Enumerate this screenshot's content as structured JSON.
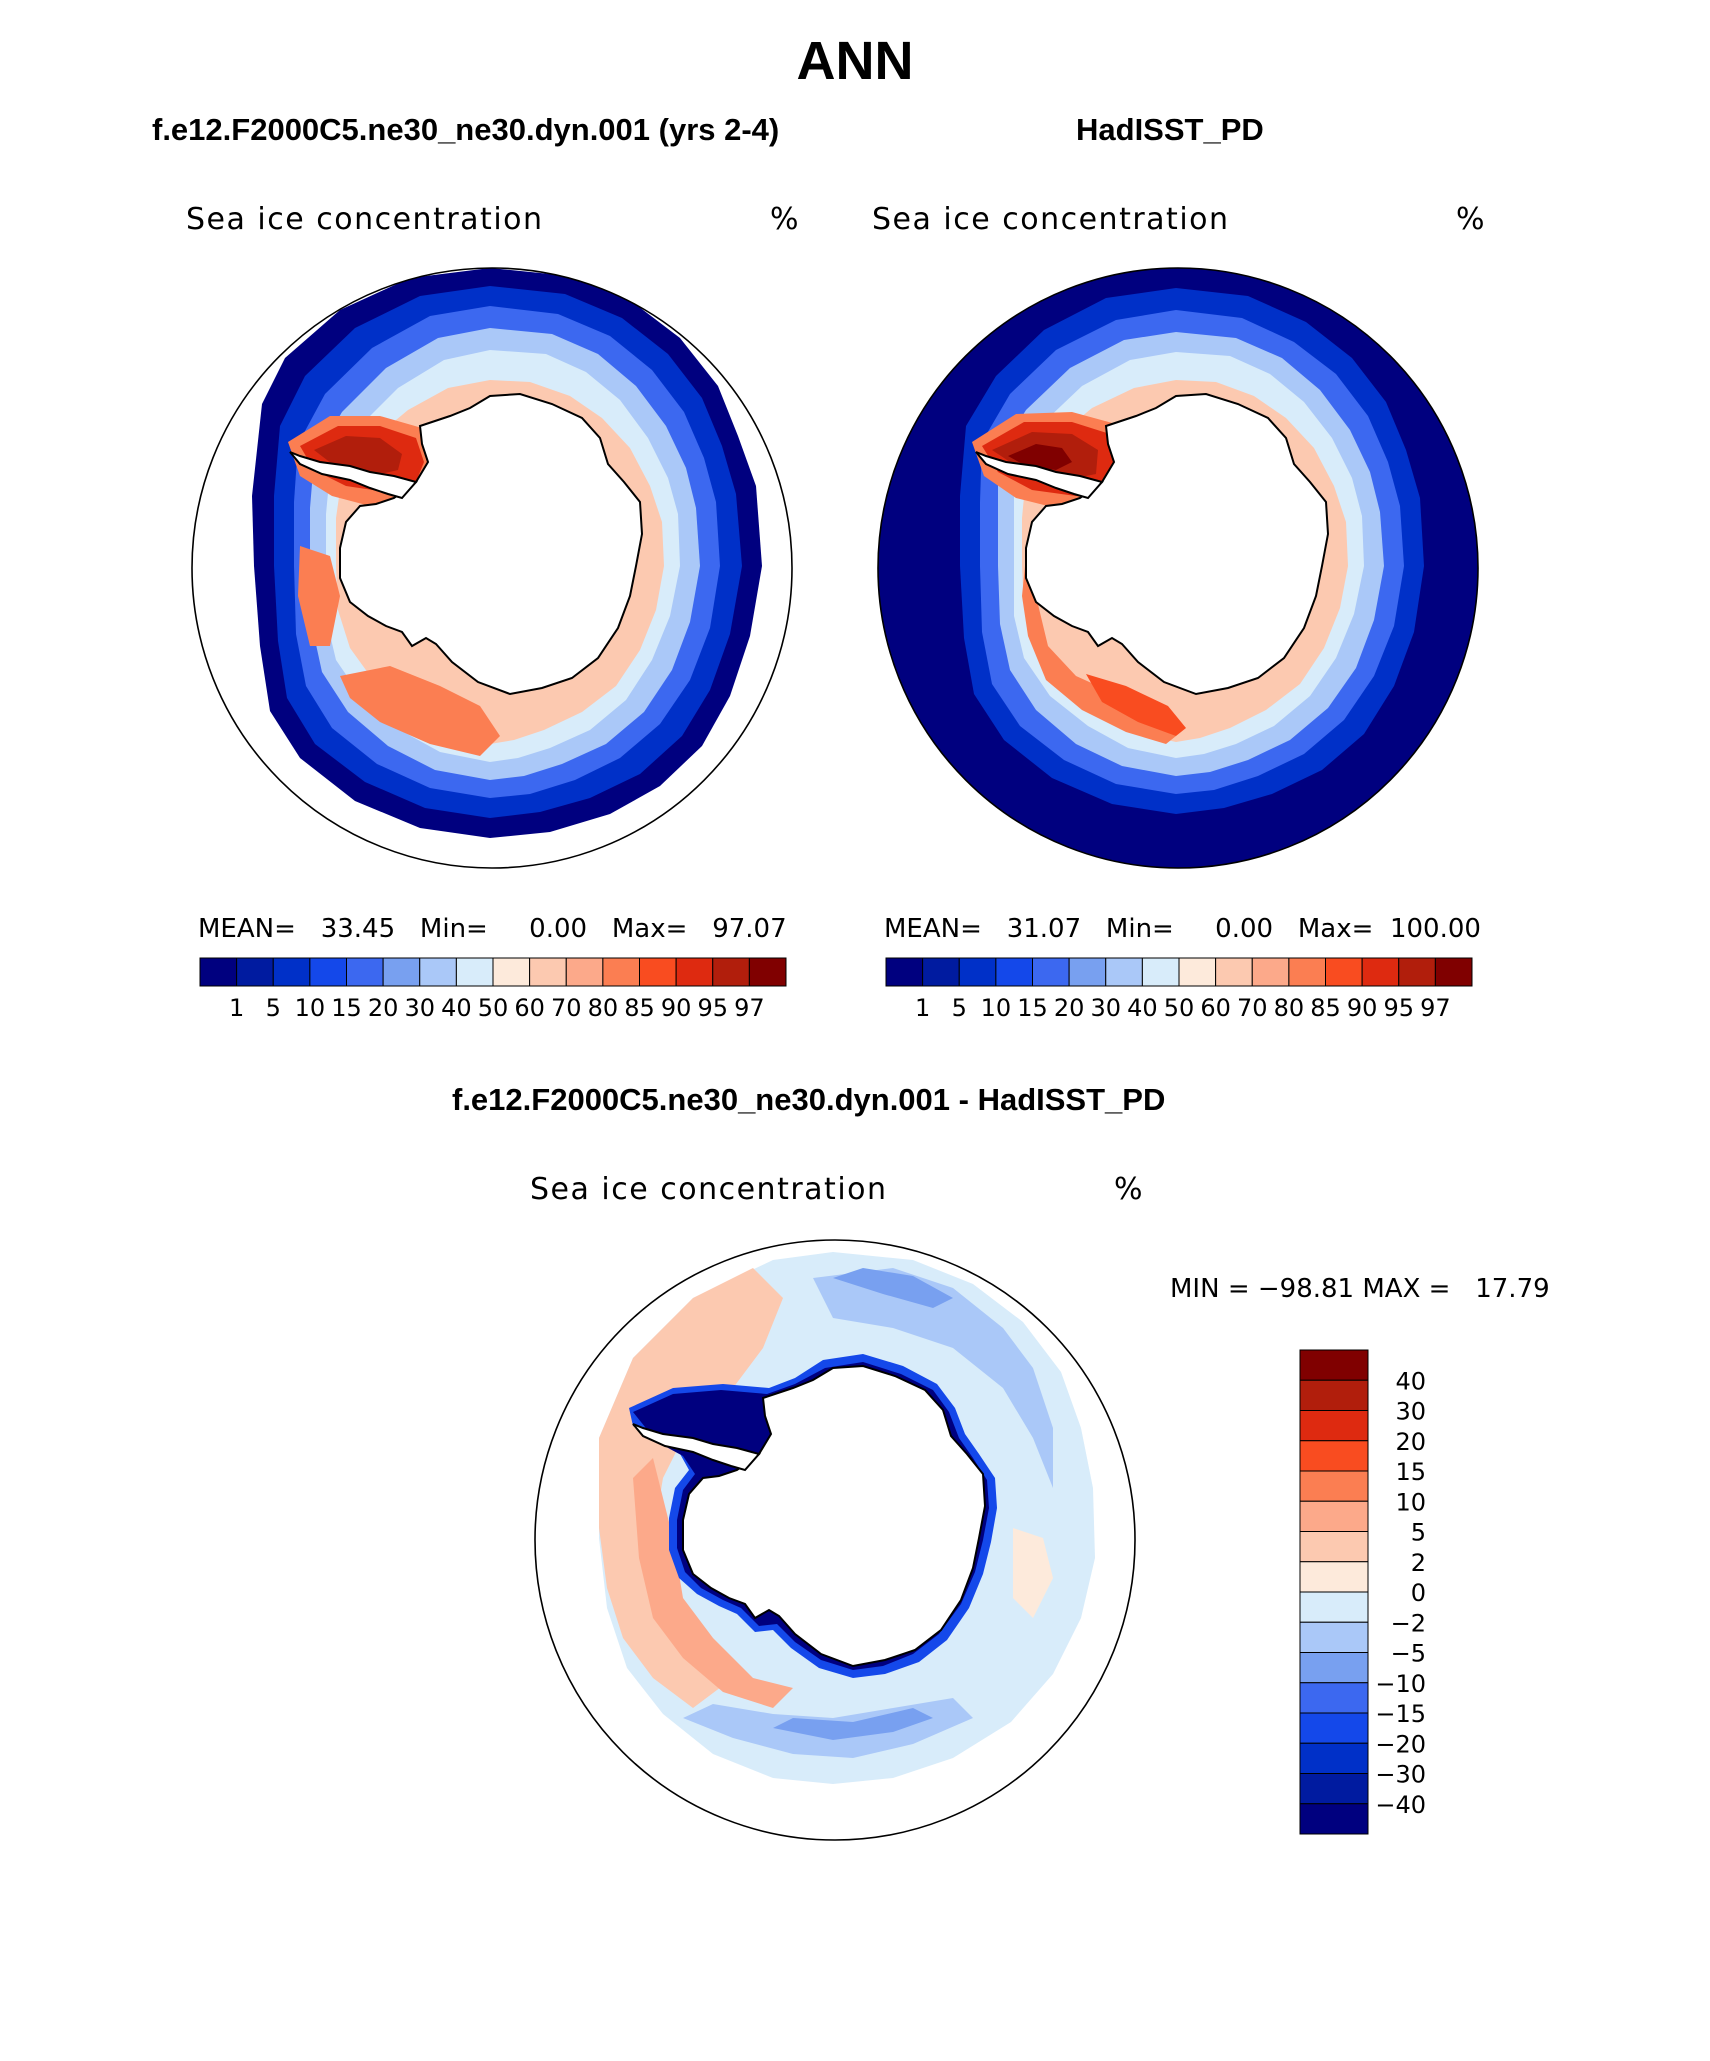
{
  "title": "ANN",
  "colors": {
    "levels": [
      "#00007f",
      "#001ba0",
      "#0030c8",
      "#1448ea",
      "#3c68f0",
      "#78a0f0",
      "#aac8f8",
      "#d8ecfa",
      "#fdeadb",
      "#fcc9b0",
      "#fca98a",
      "#fb7e52",
      "#f94c20",
      "#de2a10",
      "#b11e0c",
      "#800000"
    ],
    "diff": [
      "#800000",
      "#b11e0c",
      "#de2a10",
      "#f94c20",
      "#fb7e52",
      "#fca98a",
      "#fcc9b0",
      "#fdeadb",
      "#d8ecfa",
      "#aac8f8",
      "#78a0f0",
      "#3c68f0",
      "#1448ea",
      "#0030c8",
      "#001ba0",
      "#00007f"
    ]
  },
  "panels": {
    "model": {
      "title": "f.e12.F2000C5.ne30_ne30.dyn.001 (yrs 2-4)",
      "variable": "Sea ice concentration",
      "units": "%",
      "stats": {
        "mean_label": "MEAN=",
        "mean": "33.45",
        "min_label": "Min=",
        "min": "0.00",
        "max_label": "Max=",
        "max": "97.07"
      },
      "colorbar_labels": [
        "1",
        "5",
        "10",
        "15",
        "20",
        "30",
        "40",
        "50",
        "60",
        "70",
        "80",
        "85",
        "90",
        "95",
        "97"
      ]
    },
    "obs": {
      "title": "HadISST_PD",
      "variable": "Sea ice concentration",
      "units": "%",
      "stats": {
        "mean_label": "MEAN=",
        "mean": "31.07",
        "min_label": "Min=",
        "min": "0.00",
        "max_label": "Max=",
        "max": "100.00"
      },
      "colorbar_labels": [
        "1",
        "5",
        "10",
        "15",
        "20",
        "30",
        "40",
        "50",
        "60",
        "70",
        "80",
        "85",
        "90",
        "95",
        "97"
      ]
    },
    "diff": {
      "title": "f.e12.F2000C5.ne30_ne30.dyn.001 - HadISST_PD",
      "variable": "Sea ice concentration",
      "units": "%",
      "minmax": "MIN = −98.81 MAX =   17.79",
      "colorbar_labels": [
        "40",
        "30",
        "20",
        "15",
        "10",
        "5",
        "2",
        "0",
        "−2",
        "−5",
        "−10",
        "−15",
        "−20",
        "−30",
        "−40"
      ]
    }
  }
}
